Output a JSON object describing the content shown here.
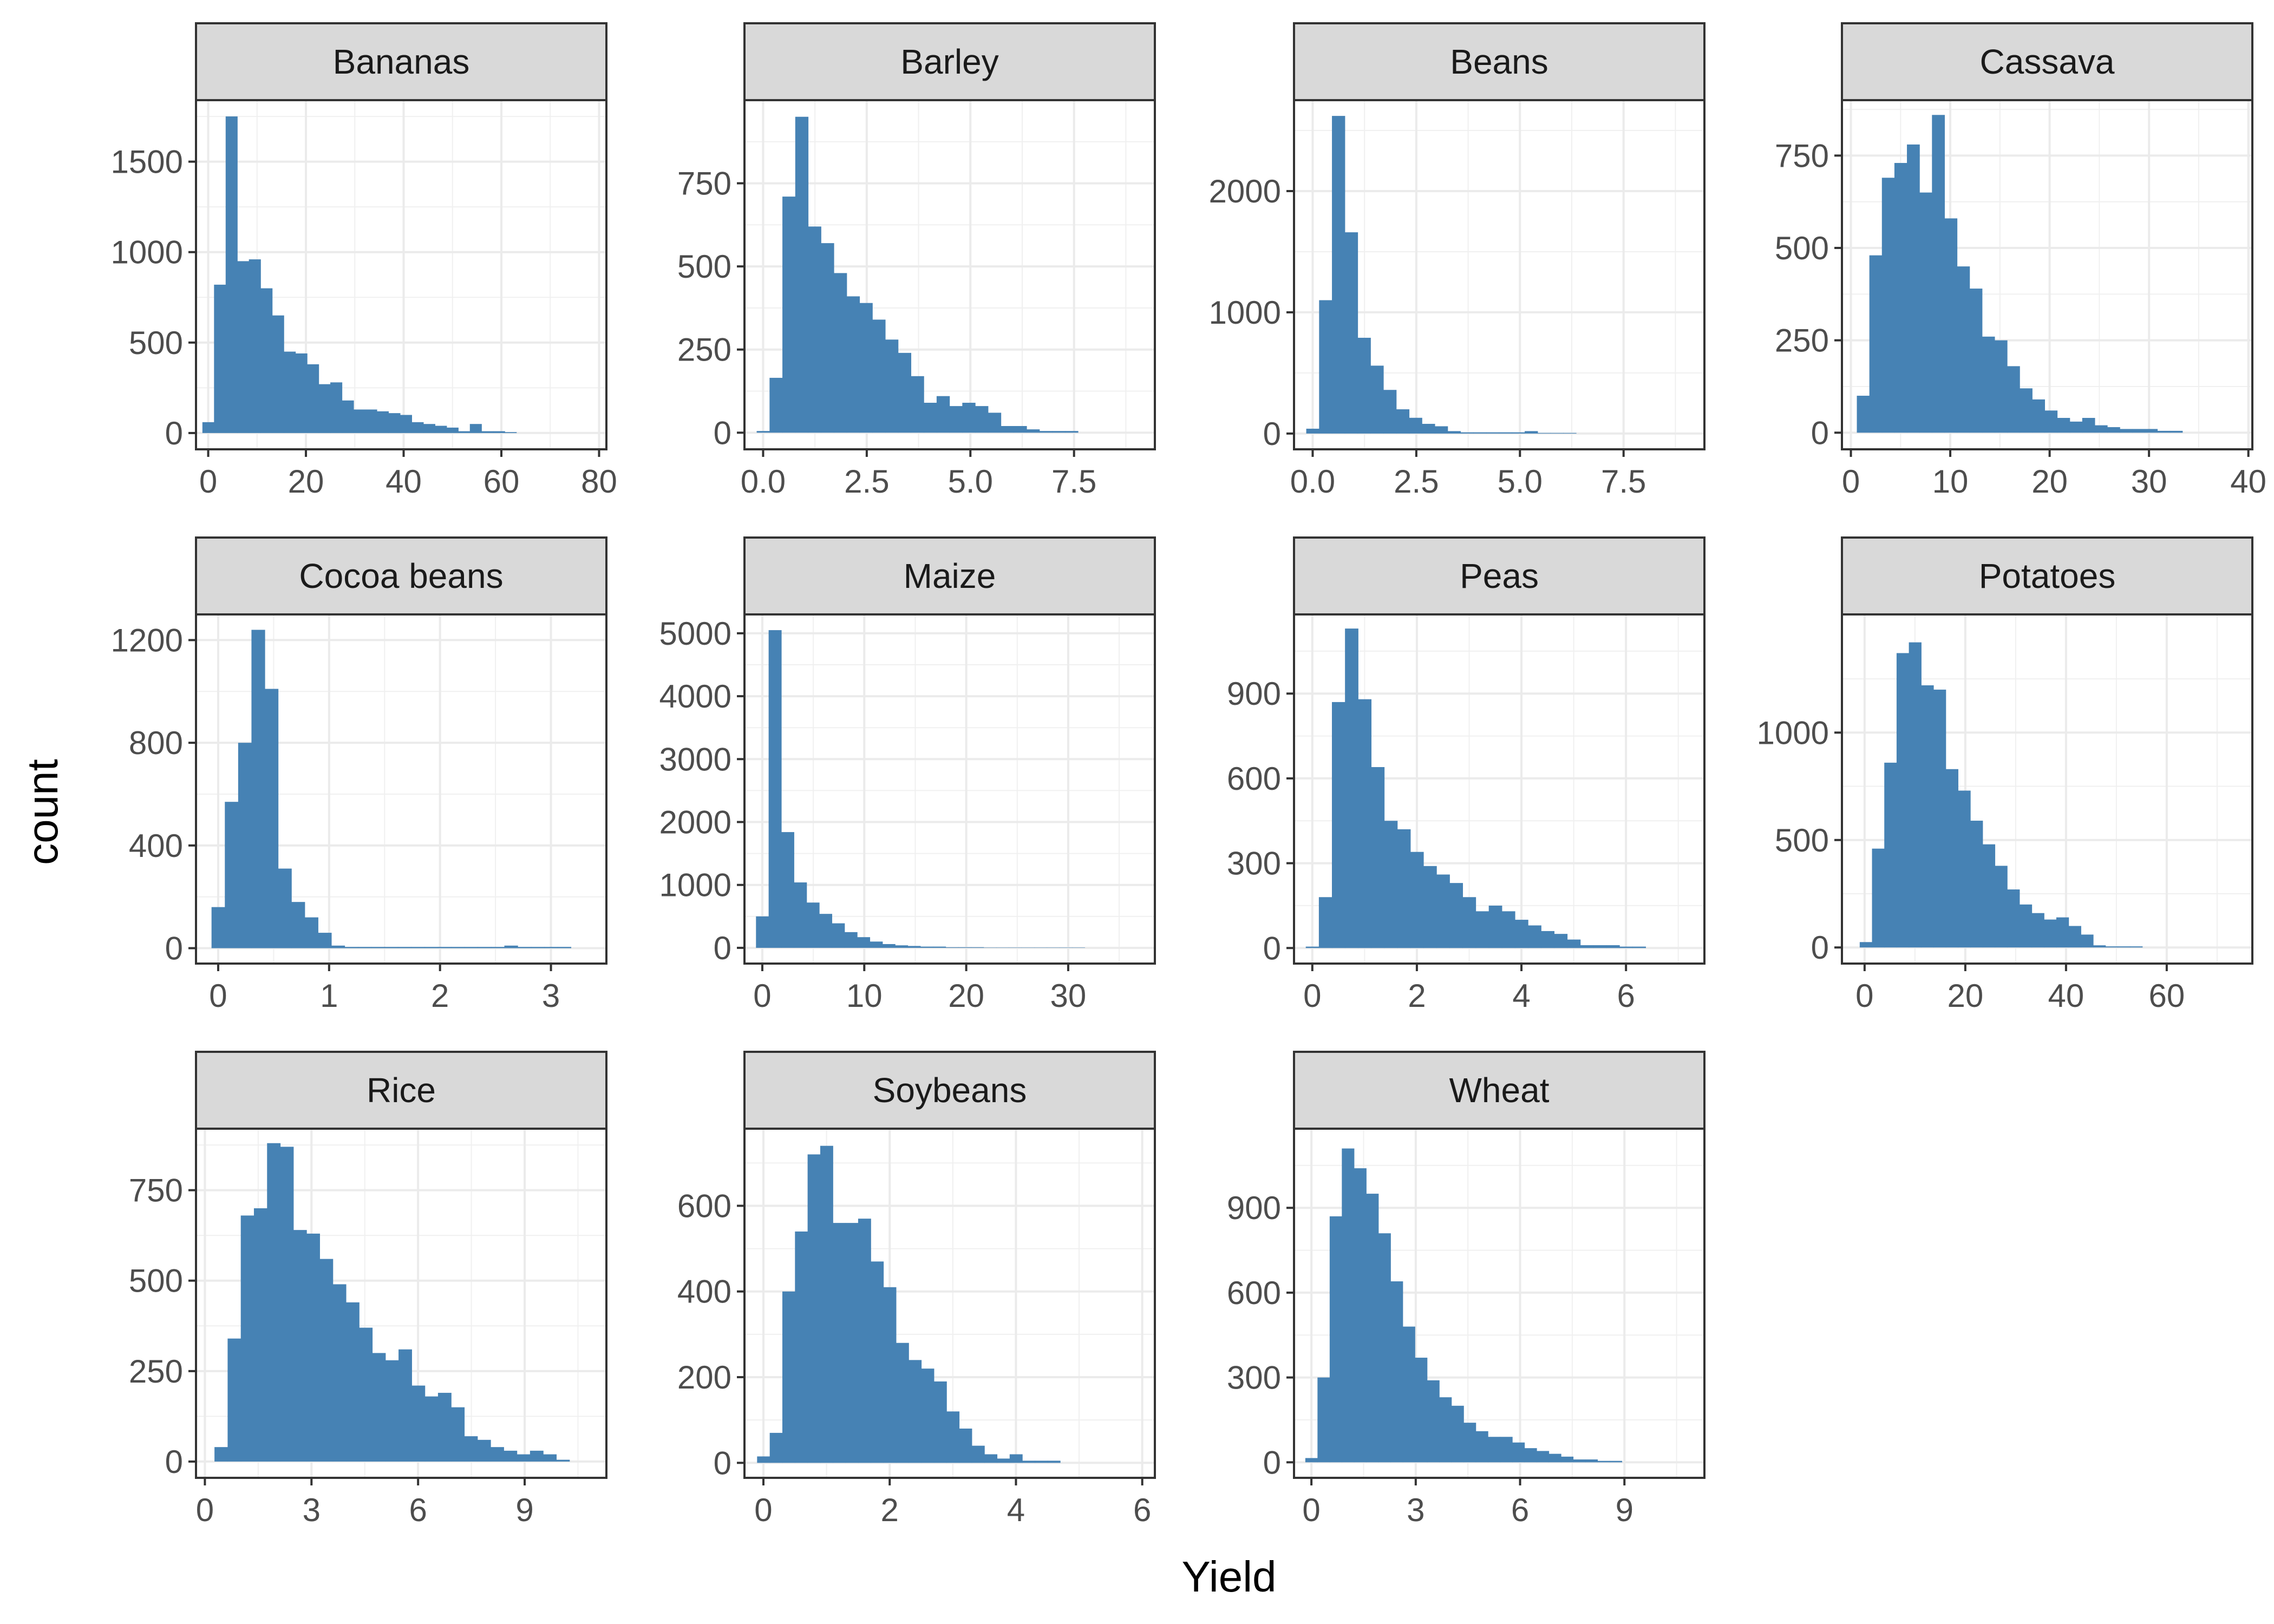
{
  "chart_data": {
    "type": "bar",
    "layout": "faceted-histogram",
    "xlabel": "Yield",
    "ylabel": "count",
    "bar_color": "#4682b4",
    "strip_fill": "#d9d9d9",
    "grid": true,
    "facets": [
      {
        "name": "Bananas",
        "xlim": [
          -2.5,
          81.5
        ],
        "ylim": [
          -90,
          1840
        ],
        "xticks": [
          0,
          20,
          40,
          60,
          80
        ],
        "xtick_labels": [
          "0",
          "20",
          "40",
          "60",
          "80"
        ],
        "yticks": [
          0,
          500,
          1000,
          1500
        ],
        "ytick_labels": [
          "0",
          "500",
          "1000",
          "1500"
        ],
        "bin_start": -1.19,
        "bin_width": 2.38,
        "counts": [
          60,
          820,
          1750,
          950,
          960,
          800,
          650,
          450,
          440,
          380,
          270,
          280,
          180,
          130,
          130,
          120,
          110,
          100,
          60,
          50,
          40,
          30,
          10,
          50,
          10,
          10,
          5,
          0,
          0,
          0
        ]
      },
      {
        "name": "Barley",
        "xlim": [
          -0.45,
          9.45
        ],
        "ylim": [
          -50,
          1000
        ],
        "xticks": [
          0,
          2.5,
          5,
          7.5
        ],
        "xtick_labels": [
          "0.0",
          "2.5",
          "5.0",
          "7.5"
        ],
        "yticks": [
          0,
          250,
          500,
          750
        ],
        "ytick_labels": [
          "0",
          "250",
          "500",
          "750"
        ],
        "bin_start": -0.155,
        "bin_width": 0.31,
        "counts": [
          5,
          165,
          710,
          950,
          620,
          570,
          480,
          410,
          390,
          340,
          280,
          240,
          170,
          90,
          110,
          80,
          90,
          80,
          60,
          20,
          20,
          10,
          5,
          5,
          5,
          0,
          0,
          0,
          0,
          0
        ]
      },
      {
        "name": "Beans",
        "xlim": [
          -0.45,
          9.45
        ],
        "ylim": [
          -130,
          2750
        ],
        "xticks": [
          0,
          2.5,
          5,
          7.5
        ],
        "xtick_labels": [
          "0.0",
          "2.5",
          "5.0",
          "7.5"
        ],
        "yticks": [
          0,
          1000,
          2000
        ],
        "ytick_labels": [
          "0",
          "1000",
          "2000"
        ],
        "bin_start": -0.155,
        "bin_width": 0.31,
        "counts": [
          40,
          1100,
          2620,
          1660,
          790,
          560,
          360,
          200,
          130,
          80,
          60,
          20,
          10,
          10,
          10,
          10,
          10,
          20,
          5,
          5,
          5,
          0,
          0,
          0,
          0,
          0,
          0,
          0,
          0,
          0
        ]
      },
      {
        "name": "Cassava",
        "xlim": [
          -0.9,
          40.4
        ],
        "ylim": [
          -45,
          900
        ],
        "xticks": [
          0,
          10,
          20,
          30,
          40
        ],
        "xtick_labels": [
          "0",
          "10",
          "20",
          "30",
          "40"
        ],
        "yticks": [
          0,
          250,
          500,
          750
        ],
        "ytick_labels": [
          "0",
          "250",
          "500",
          "750"
        ],
        "bin_start": 0.6,
        "bin_width": 1.26,
        "counts": [
          100,
          480,
          690,
          730,
          780,
          650,
          860,
          580,
          450,
          390,
          260,
          250,
          180,
          120,
          90,
          60,
          40,
          30,
          40,
          20,
          15,
          10,
          10,
          10,
          5,
          5,
          0,
          0,
          0,
          0
        ]
      },
      {
        "name": "Cocoa beans",
        "xlim": [
          -0.2,
          3.5
        ],
        "ylim": [
          -60,
          1300
        ],
        "xticks": [
          0,
          1,
          2,
          3
        ],
        "xtick_labels": [
          "0",
          "1",
          "2",
          "3"
        ],
        "yticks": [
          0,
          400,
          800,
          1200
        ],
        "ytick_labels": [
          "0",
          "400",
          "800",
          "1200"
        ],
        "bin_start": -0.06,
        "bin_width": 0.12,
        "counts": [
          160,
          570,
          800,
          1240,
          1010,
          310,
          180,
          120,
          60,
          10,
          5,
          5,
          5,
          5,
          5,
          5,
          5,
          5,
          5,
          5,
          5,
          5,
          10,
          5,
          5,
          5,
          5,
          0,
          0,
          0
        ]
      },
      {
        "name": "Maize",
        "xlim": [
          -1.75,
          38.5
        ],
        "ylim": [
          -250,
          5300
        ],
        "xticks": [
          0,
          10,
          20,
          30
        ],
        "xtick_labels": [
          "0",
          "10",
          "20",
          "30"
        ],
        "yticks": [
          0,
          1000,
          2000,
          3000,
          4000,
          5000
        ],
        "ytick_labels": [
          "0",
          "1000",
          "2000",
          "3000",
          "4000",
          "5000"
        ],
        "bin_start": -0.62,
        "bin_width": 1.24,
        "counts": [
          500,
          5050,
          1840,
          1040,
          720,
          540,
          390,
          250,
          170,
          100,
          60,
          40,
          30,
          20,
          20,
          10,
          10,
          10,
          5,
          5,
          5,
          5,
          5,
          5,
          5,
          5,
          0,
          0,
          0,
          0
        ]
      },
      {
        "name": "Peas",
        "xlim": [
          -0.35,
          7.5
        ],
        "ylim": [
          -55,
          1180
        ],
        "xticks": [
          0,
          2,
          4,
          6
        ],
        "xtick_labels": [
          "0",
          "2",
          "4",
          "6"
        ],
        "yticks": [
          0,
          300,
          600,
          900
        ],
        "ytick_labels": [
          "0",
          "300",
          "600",
          "900"
        ],
        "bin_start": -0.125,
        "bin_width": 0.25,
        "counts": [
          5,
          180,
          870,
          1130,
          880,
          640,
          450,
          420,
          340,
          290,
          260,
          230,
          180,
          130,
          150,
          130,
          100,
          80,
          60,
          50,
          30,
          10,
          10,
          10,
          5,
          5,
          0,
          0,
          0,
          0
        ]
      },
      {
        "name": "Potatoes",
        "xlim": [
          -4.5,
          77
        ],
        "ylim": [
          -75,
          1550
        ],
        "xticks": [
          0,
          20,
          40,
          60
        ],
        "xtick_labels": [
          "0",
          "20",
          "40",
          "60"
        ],
        "yticks": [
          0,
          500,
          1000
        ],
        "ytick_labels": [
          "0",
          "500",
          "1000"
        ],
        "bin_start": -0.97,
        "bin_width": 2.44,
        "counts": [
          25,
          460,
          860,
          1370,
          1420,
          1220,
          1200,
          830,
          730,
          590,
          480,
          380,
          270,
          200,
          160,
          130,
          140,
          100,
          60,
          10,
          5,
          5,
          5,
          0,
          0,
          0,
          0,
          0,
          0,
          0
        ]
      },
      {
        "name": "Rice",
        "xlim": [
          -0.25,
          11.3
        ],
        "ylim": [
          -45,
          920
        ],
        "xticks": [
          0,
          3,
          6,
          9
        ],
        "xtick_labels": [
          "0",
          "3",
          "6",
          "9"
        ],
        "yticks": [
          0,
          250,
          500,
          750
        ],
        "ytick_labels": [
          "0",
          "250",
          "500",
          "750"
        ],
        "bin_start": 0.27,
        "bin_width": 0.37,
        "counts": [
          40,
          340,
          680,
          700,
          880,
          870,
          640,
          630,
          560,
          490,
          440,
          370,
          300,
          280,
          310,
          210,
          180,
          190,
          150,
          70,
          60,
          40,
          30,
          20,
          30,
          20,
          5,
          0,
          0,
          0
        ]
      },
      {
        "name": "Soybeans",
        "xlim": [
          -0.3,
          6.2
        ],
        "ylim": [
          -35,
          780
        ],
        "xticks": [
          0,
          2,
          4,
          6
        ],
        "xtick_labels": [
          "0",
          "2",
          "4",
          "6"
        ],
        "yticks": [
          0,
          200,
          400,
          600
        ],
        "ytick_labels": [
          "0",
          "200",
          "400",
          "600"
        ],
        "bin_start": -0.1,
        "bin_width": 0.2,
        "counts": [
          15,
          70,
          400,
          540,
          720,
          740,
          560,
          560,
          570,
          470,
          410,
          280,
          240,
          220,
          190,
          120,
          80,
          40,
          20,
          10,
          20,
          5,
          5,
          5,
          0,
          0,
          0,
          0,
          0,
          0
        ]
      },
      {
        "name": "Wheat",
        "xlim": [
          -0.5,
          11.3
        ],
        "ylim": [
          -55,
          1180
        ],
        "xticks": [
          0,
          3,
          6,
          9
        ],
        "xtick_labels": [
          "0",
          "3",
          "6",
          "9"
        ],
        "yticks": [
          0,
          300,
          600,
          900
        ],
        "ytick_labels": [
          "0",
          "300",
          "600",
          "900"
        ],
        "bin_start": -0.175,
        "bin_width": 0.35,
        "counts": [
          15,
          300,
          870,
          1110,
          1040,
          950,
          810,
          640,
          480,
          370,
          290,
          230,
          200,
          140,
          110,
          90,
          90,
          70,
          50,
          40,
          30,
          20,
          10,
          10,
          5,
          5,
          0,
          0,
          0,
          0
        ]
      }
    ]
  }
}
